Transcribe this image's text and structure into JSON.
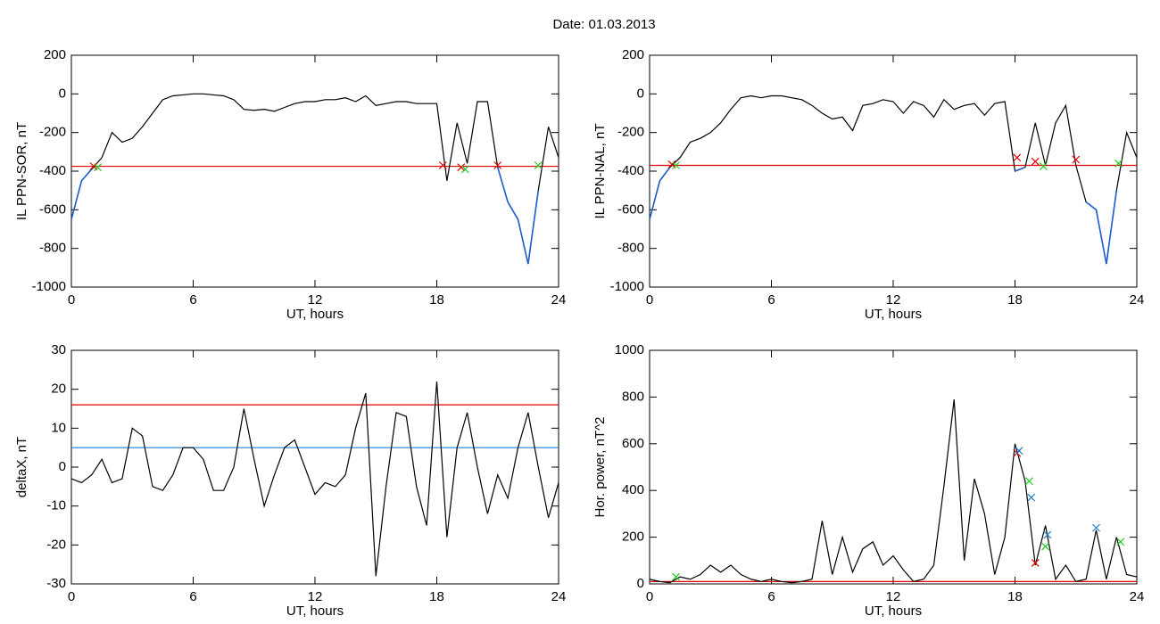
{
  "title": "Date:  01.03.2013",
  "chart_data": [
    {
      "type": "line",
      "xlabel": "UT, hours",
      "ylabel": "IL PPN-SOR, nT",
      "x": [
        0,
        0.5,
        1,
        1.5,
        2,
        2.5,
        3,
        3.5,
        4,
        4.5,
        5,
        5.5,
        6,
        6.5,
        7,
        7.5,
        8,
        8.5,
        9,
        9.5,
        10,
        10.5,
        11,
        11.5,
        12,
        12.5,
        13,
        13.5,
        14,
        14.5,
        15,
        15.5,
        16,
        16.5,
        17,
        17.5,
        18,
        18.5,
        19,
        19.5,
        20,
        20.5,
        21,
        21.5,
        22,
        22.5,
        23,
        23.5,
        24
      ],
      "series": [
        {
          "color": "#000000",
          "below_color": "#1f5fd0",
          "values": [
            -650,
            -450,
            -390,
            -330,
            -200,
            -250,
            -230,
            -170,
            -100,
            -30,
            -10,
            -5,
            0,
            0,
            -5,
            -10,
            -30,
            -80,
            -85,
            -80,
            -90,
            -70,
            -50,
            -40,
            -40,
            -30,
            -30,
            -20,
            -40,
            -10,
            -60,
            -50,
            -40,
            -40,
            -50,
            -50,
            -50,
            -450,
            -150,
            -360,
            -40,
            -40,
            -380,
            -560,
            -650,
            -880,
            -500,
            -170,
            -330
          ]
        }
      ],
      "thresholds": [
        {
          "value": -375,
          "color": "#e00000"
        }
      ],
      "markers": [
        {
          "color": "#e00000",
          "x": [
            1.1,
            18.3,
            19.2,
            21
          ],
          "values": [
            -375,
            -370,
            -380,
            -370
          ]
        },
        {
          "color": "#22cc22",
          "x": [
            1.3,
            19.4,
            23
          ],
          "values": [
            -380,
            -390,
            -370
          ]
        }
      ],
      "xlim": [
        0,
        24
      ],
      "xticks": [
        0,
        6,
        12,
        18,
        24
      ],
      "ylim": [
        -1000,
        200
      ],
      "yticks": [
        -1000,
        -800,
        -600,
        -400,
        -200,
        0,
        200
      ]
    },
    {
      "type": "line",
      "xlabel": "UT, hours",
      "ylabel": "IL PPN-NAL, nT",
      "x": [
        0,
        0.5,
        1,
        1.5,
        2,
        2.5,
        3,
        3.5,
        4,
        4.5,
        5,
        5.5,
        6,
        6.5,
        7,
        7.5,
        8,
        8.5,
        9,
        9.5,
        10,
        10.5,
        11,
        11.5,
        12,
        12.5,
        13,
        13.5,
        14,
        14.5,
        15,
        15.5,
        16,
        16.5,
        17,
        17.5,
        18,
        18.5,
        19,
        19.5,
        20,
        20.5,
        21,
        21.5,
        22,
        22.5,
        23,
        23.5,
        24
      ],
      "series": [
        {
          "color": "#000000",
          "below_color": "#1f5fd0",
          "values": [
            -650,
            -450,
            -380,
            -330,
            -250,
            -230,
            -200,
            -150,
            -80,
            -20,
            -10,
            -20,
            -10,
            -10,
            -20,
            -30,
            -60,
            -100,
            -130,
            -120,
            -190,
            -60,
            -50,
            -30,
            -40,
            -100,
            -40,
            -60,
            -120,
            -30,
            -80,
            -60,
            -50,
            -110,
            -50,
            -40,
            -400,
            -380,
            -150,
            -370,
            -150,
            -60,
            -370,
            -560,
            -600,
            -880,
            -500,
            -200,
            -330
          ]
        }
      ],
      "thresholds": [
        {
          "value": -370,
          "color": "#e00000"
        }
      ],
      "markers": [
        {
          "color": "#e00000",
          "x": [
            1.1,
            18.1,
            19,
            21
          ],
          "values": [
            -365,
            -330,
            -350,
            -340
          ]
        },
        {
          "color": "#22cc22",
          "x": [
            1.3,
            19.4,
            23.1
          ],
          "values": [
            -370,
            -375,
            -360
          ]
        }
      ],
      "xlim": [
        0,
        24
      ],
      "xticks": [
        0,
        6,
        12,
        18,
        24
      ],
      "ylim": [
        -1000,
        200
      ],
      "yticks": [
        -1000,
        -800,
        -600,
        -400,
        -200,
        0,
        200
      ]
    },
    {
      "type": "line",
      "xlabel": "UT, hours",
      "ylabel": "deltaX, nT",
      "x": [
        0,
        0.5,
        1,
        1.5,
        2,
        2.5,
        3,
        3.5,
        4,
        4.5,
        5,
        5.5,
        6,
        6.5,
        7,
        7.5,
        8,
        8.5,
        9,
        9.5,
        10,
        10.5,
        11,
        11.5,
        12,
        12.5,
        13,
        13.5,
        14,
        14.5,
        15,
        15.5,
        16,
        16.5,
        17,
        17.5,
        18,
        18.5,
        19,
        19.5,
        20,
        20.5,
        21,
        21.5,
        22,
        22.5,
        23,
        23.5,
        24
      ],
      "series": [
        {
          "color": "#000000",
          "values": [
            -3,
            -4,
            -2,
            2,
            -4,
            -3,
            10,
            8,
            -5,
            -6,
            -2,
            5,
            5,
            2,
            -6,
            -6,
            0,
            15,
            2,
            -10,
            -2,
            5,
            7,
            0,
            -7,
            -4,
            -5,
            -2,
            10,
            19,
            -28,
            -5,
            14,
            13,
            -5,
            -15,
            22,
            -18,
            5,
            14,
            0,
            -12,
            -2,
            -8,
            5,
            14,
            0,
            -13,
            -4
          ]
        }
      ],
      "thresholds": [
        {
          "value": 16,
          "color": "#e00000"
        },
        {
          "value": 5,
          "color": "#1f7fd0"
        }
      ],
      "markers": [],
      "xlim": [
        0,
        24
      ],
      "xticks": [
        0,
        6,
        12,
        18,
        24
      ],
      "ylim": [
        -30,
        30
      ],
      "yticks": [
        -30,
        -20,
        -10,
        0,
        10,
        20,
        30
      ]
    },
    {
      "type": "line",
      "xlabel": "UT, hours",
      "ylabel": "Hor. power, nT^2",
      "x": [
        0,
        0.5,
        1,
        1.5,
        2,
        2.5,
        3,
        3.5,
        4,
        4.5,
        5,
        5.5,
        6,
        6.5,
        7,
        7.5,
        8,
        8.5,
        9,
        9.5,
        10,
        10.5,
        11,
        11.5,
        12,
        12.5,
        13,
        13.5,
        14,
        14.5,
        15,
        15.5,
        16,
        16.5,
        17,
        17.5,
        18,
        18.5,
        19,
        19.5,
        20,
        20.5,
        21,
        21.5,
        22,
        22.5,
        23,
        23.5,
        24
      ],
      "series": [
        {
          "color": "#000000",
          "values": [
            20,
            10,
            5,
            30,
            20,
            40,
            80,
            50,
            80,
            40,
            20,
            10,
            20,
            10,
            5,
            10,
            20,
            270,
            40,
            200,
            50,
            150,
            180,
            80,
            120,
            60,
            10,
            20,
            80,
            420,
            790,
            100,
            450,
            300,
            40,
            200,
            600,
            440,
            80,
            250,
            20,
            80,
            10,
            20,
            230,
            20,
            200,
            40,
            30
          ]
        }
      ],
      "thresholds": [
        {
          "value": 10,
          "color": "#e00000"
        }
      ],
      "markers": [
        {
          "color": "#e00000",
          "x": [
            18.1,
            19
          ],
          "values": [
            560,
            90
          ]
        },
        {
          "color": "#1f7fd0",
          "x": [
            18.2,
            18.8,
            19.6,
            22
          ],
          "values": [
            570,
            370,
            210,
            240
          ]
        },
        {
          "color": "#22cc22",
          "x": [
            1.3,
            18.7,
            19.5,
            23.2
          ],
          "values": [
            30,
            440,
            160,
            180
          ]
        }
      ],
      "xlim": [
        0,
        24
      ],
      "xticks": [
        0,
        6,
        12,
        18,
        24
      ],
      "ylim": [
        0,
        1000
      ],
      "yticks": [
        0,
        200,
        400,
        600,
        800,
        1000
      ]
    }
  ]
}
